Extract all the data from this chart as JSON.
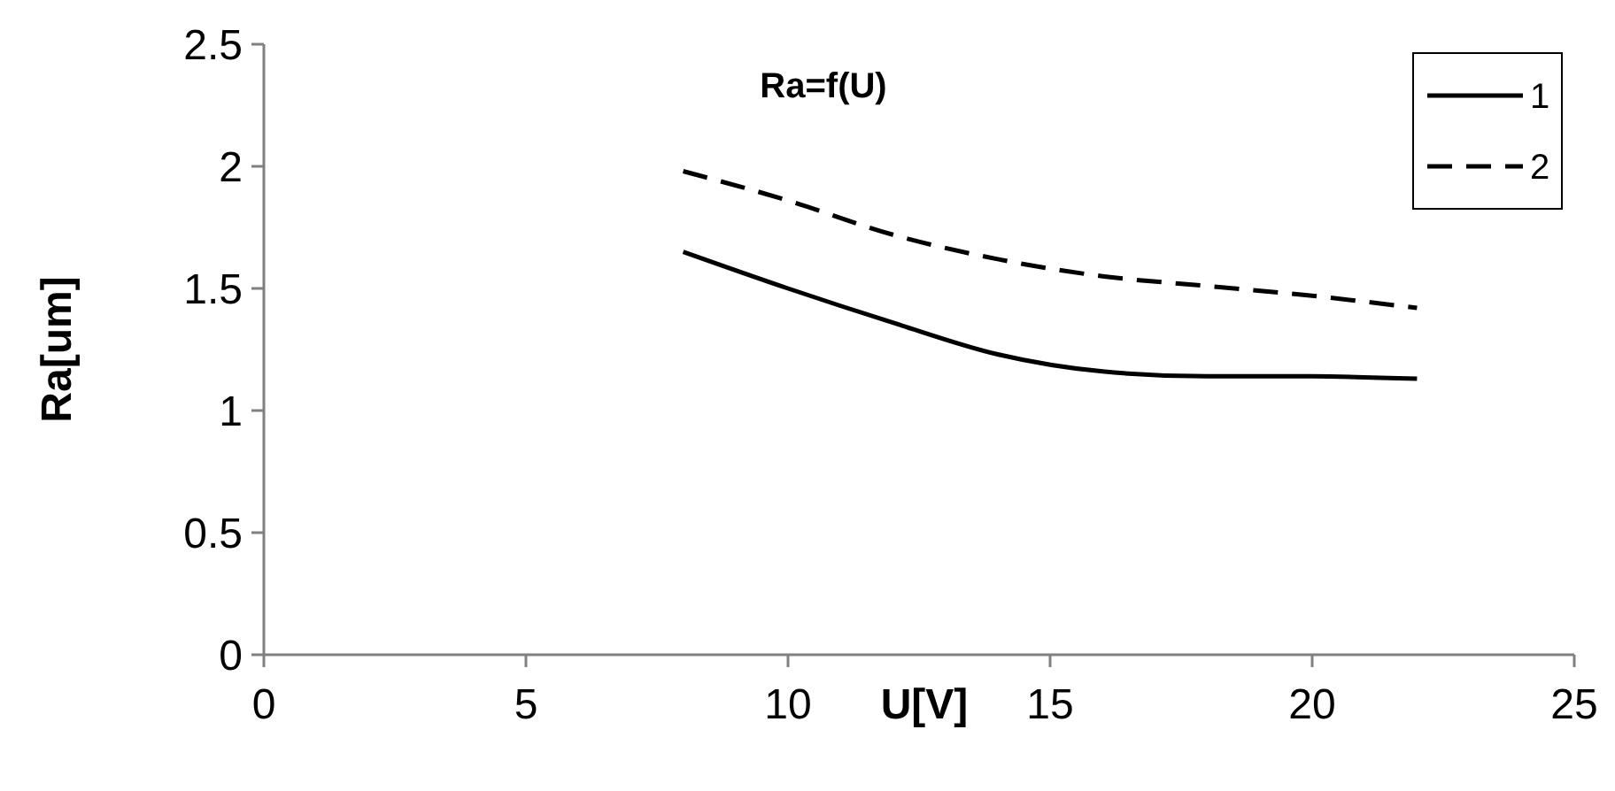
{
  "chart_data": {
    "type": "line",
    "title": "Ra=f(U)",
    "xlabel": "U[V]",
    "ylabel": "Ra[um]",
    "x": [
      8,
      10,
      12,
      14,
      16,
      18,
      20,
      22
    ],
    "series": [
      {
        "name": "1",
        "color": "#000000",
        "line_style": "solid",
        "values": [
          1.65,
          1.5,
          1.36,
          1.23,
          1.16,
          1.14,
          1.14,
          1.13
        ]
      },
      {
        "name": "2",
        "color": "#000000",
        "line_style": "dashed",
        "values": [
          1.98,
          1.86,
          1.72,
          1.62,
          1.55,
          1.51,
          1.47,
          1.42
        ]
      }
    ],
    "xlim": [
      0,
      25
    ],
    "xticks": [
      0,
      5,
      10,
      15,
      20,
      25
    ],
    "ylim": [
      0,
      2.5
    ],
    "yticks": [
      0,
      0.5,
      1,
      1.5,
      2,
      2.5
    ],
    "grid": false,
    "legend": "top right",
    "marker": "none"
  }
}
